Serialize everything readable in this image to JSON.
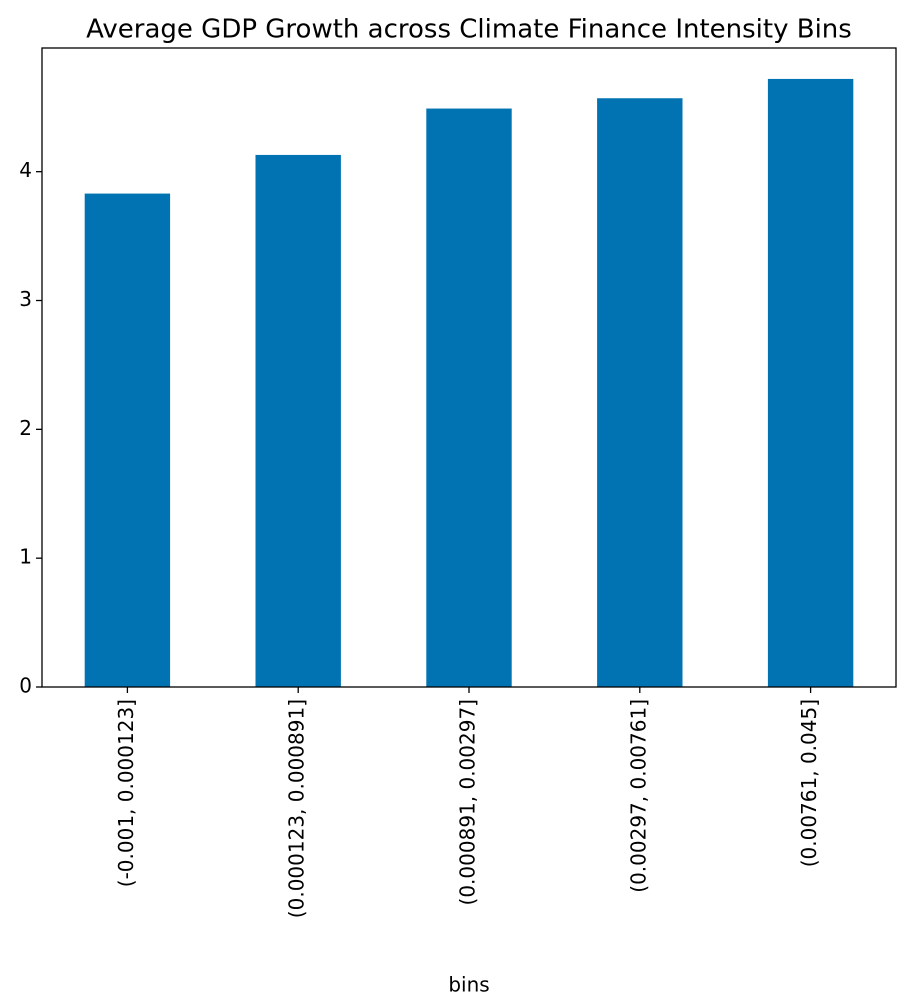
{
  "chart_data": {
    "type": "bar",
    "title": "Average GDP Growth across Climate Finance Intensity Bins",
    "x_label": "bins",
    "categories": [
      "(-0.001, 0.000123]",
      "(0.000123, 0.000891]",
      "(0.000891, 0.00297]",
      "(0.00297, 0.00761]",
      "(0.00761, 0.045]"
    ],
    "values": [
      3.83,
      4.13,
      4.49,
      4.57,
      4.72
    ],
    "color": "#0173b2",
    "ylim": [
      0,
      4.96
    ],
    "yticks": [
      0,
      1,
      2,
      3,
      4
    ],
    "grid": false
  }
}
